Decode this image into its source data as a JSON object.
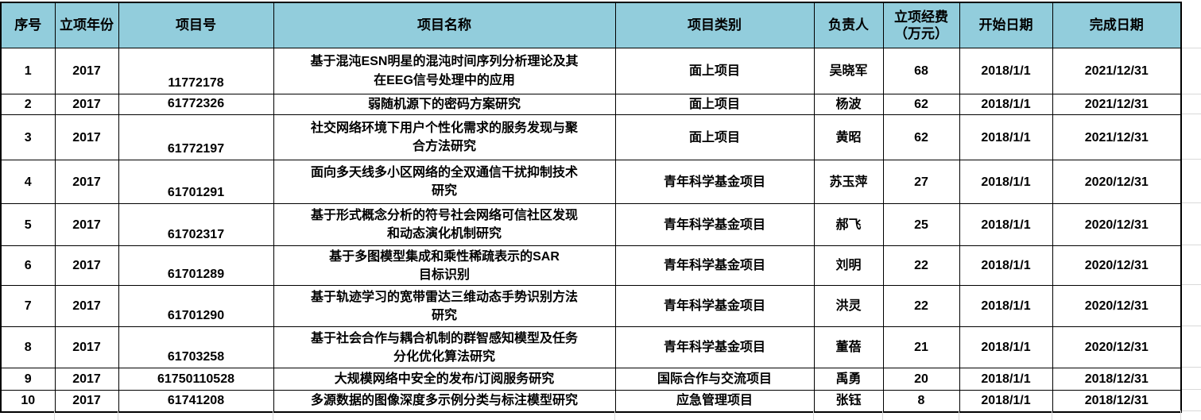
{
  "colors": {
    "header_bg": "#92CDDC",
    "table_border": "#000000",
    "gridline": "#D9D9D9"
  },
  "table": {
    "columns": [
      {
        "key": "seq",
        "label": "序号"
      },
      {
        "key": "year",
        "label": "立项年份"
      },
      {
        "key": "project_no",
        "label": "项目号"
      },
      {
        "key": "name",
        "label": "项目名称"
      },
      {
        "key": "category",
        "label": "项目类别"
      },
      {
        "key": "pi",
        "label": "负责人"
      },
      {
        "key": "funding",
        "label": "立项经费\n（万元）"
      },
      {
        "key": "start_date",
        "label": "开始日期"
      },
      {
        "key": "end_date",
        "label": "完成日期"
      }
    ],
    "rows": [
      {
        "seq": "1",
        "year": "2017",
        "project_no": "11772178",
        "name": "基于混沌ESN明星的混沌时间序列分析理论及其\n在EEG信号处理中的应用",
        "category": "面上项目",
        "pi": "吴晓军",
        "funding": "68",
        "start_date": "2018/1/1",
        "end_date": "2021/12/31"
      },
      {
        "seq": "2",
        "year": "2017",
        "project_no": "61772326",
        "name": "弱随机源下的密码方案研究",
        "category": "面上项目",
        "pi": "杨波",
        "funding": "62",
        "start_date": "2018/1/1",
        "end_date": "2021/12/31"
      },
      {
        "seq": "3",
        "year": "2017",
        "project_no": "61772197",
        "name": "社交网络环境下用户个性化需求的服务发现与聚\n合方法研究",
        "category": "面上项目",
        "pi": "黄昭",
        "funding": "62",
        "start_date": "2018/1/1",
        "end_date": "2021/12/31"
      },
      {
        "seq": "4",
        "year": "2017",
        "project_no": "61701291",
        "name": "面向多天线多小区网络的全双通信干扰抑制技术\n研究",
        "category": "青年科学基金项目",
        "pi": "苏玉萍",
        "funding": "27",
        "start_date": "2018/1/1",
        "end_date": "2020/12/31"
      },
      {
        "seq": "5",
        "year": "2017",
        "project_no": "61702317",
        "name": "基于形式概念分析的符号社会网络可信社区发现\n和动态演化机制研究",
        "category": "青年科学基金项目",
        "pi": "郝飞",
        "funding": "25",
        "start_date": "2018/1/1",
        "end_date": "2020/12/31"
      },
      {
        "seq": "6",
        "year": "2017",
        "project_no": "61701289",
        "name": "基于多图模型集成和乘性稀疏表示的SAR\n目标识别",
        "category": "青年科学基金项目",
        "pi": "刘明",
        "funding": "22",
        "start_date": "2018/1/1",
        "end_date": "2020/12/31"
      },
      {
        "seq": "7",
        "year": "2017",
        "project_no": "61701290",
        "name": "基于轨迹学习的宽带雷达三维动态手势识别方法\n研究",
        "category": "青年科学基金项目",
        "pi": "洪灵",
        "funding": "22",
        "start_date": "2018/1/1",
        "end_date": "2020/12/31"
      },
      {
        "seq": "8",
        "year": "2017",
        "project_no": "61703258",
        "name": "基于社会合作与耦合机制的群智感知模型及任务\n分化优化算法研究",
        "category": "青年科学基金项目",
        "pi": "董蓓",
        "funding": "21",
        "start_date": "2018/1/1",
        "end_date": "2020/12/31"
      },
      {
        "seq": "9",
        "year": "2017",
        "project_no": "61750110528",
        "name": "大规模网络中安全的发布/订阅服务研究",
        "category": "国际合作与交流项目",
        "pi": "禹勇",
        "funding": "20",
        "start_date": "2018/1/1",
        "end_date": "2018/12/31"
      },
      {
        "seq": "10",
        "year": "2017",
        "project_no": "61741208",
        "name": "多源数据的图像深度多示例分类与标注模型研究",
        "category": "应急管理项目",
        "pi": "张钰",
        "funding": "8",
        "start_date": "2018/1/1",
        "end_date": "2018/12/31"
      }
    ]
  }
}
